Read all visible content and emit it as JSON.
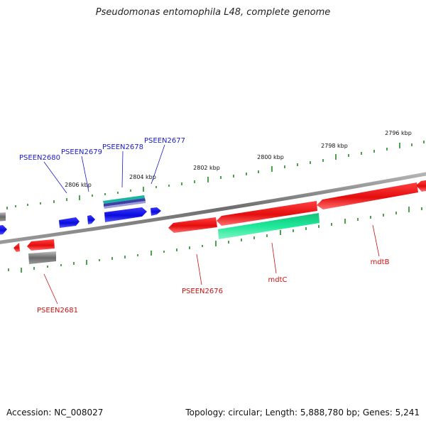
{
  "title": "Pseudomonas entomophila L48, complete genome",
  "footer": {
    "accession": "Accession: NC_008027",
    "summary": "Topology: circular; Length: 5,888,780 bp; Genes: 5,241"
  },
  "colors": {
    "forward_gene": "#0b0bdc",
    "reverse_gene": "#e50d0d",
    "rna_gene": "#1ee89a",
    "tick": "#1e8c1e",
    "backbone": "#7a7a7a",
    "pseudo_gene": "#6a6a6a"
  },
  "scale": {
    "labels": [
      "2806 kbp",
      "2804 kbp",
      "2802 kbp",
      "2800 kbp",
      "2798 kbp",
      "2796 kbp"
    ]
  },
  "genes": [
    {
      "name": "PSEEN2680",
      "strand": "forward"
    },
    {
      "name": "PSEEN2679",
      "strand": "forward"
    },
    {
      "name": "PSEEN2678",
      "strand": "forward"
    },
    {
      "name": "PSEEN2677",
      "strand": "forward"
    },
    {
      "name": "PSEEN2681",
      "strand": "reverse"
    },
    {
      "name": "PSEEN2676",
      "strand": "reverse"
    },
    {
      "name": "mdtC",
      "strand": "reverse"
    },
    {
      "name": "mdtB",
      "strand": "reverse"
    }
  ]
}
